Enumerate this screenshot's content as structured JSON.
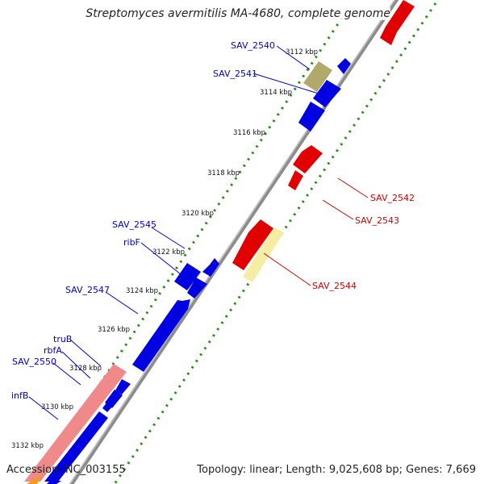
{
  "title": "Streptomyces avermitilis MA-4680, complete genome",
  "accession_text": "Accession: NC_003155",
  "summary_text": "Topology: linear; Length: 9,025,608 bp; Genes: 7,669",
  "ticks": [
    {
      "label": "3112 kbp"
    },
    {
      "label": "3114 kbp"
    },
    {
      "label": "3116 kbp"
    },
    {
      "label": "3118 kbp"
    },
    {
      "label": "3120 kbp"
    },
    {
      "label": "3122 kbp"
    },
    {
      "label": "3124 kbp"
    },
    {
      "label": "3126 kbp"
    },
    {
      "label": "3128 kbp"
    },
    {
      "label": "3130 kbp"
    },
    {
      "label": "3132 kbp"
    }
  ],
  "genes_reverse": [
    {
      "name": "SAV_2540",
      "color": "#b0a96b"
    },
    {
      "name": "SAV_2541",
      "color": "#0000e0"
    },
    {
      "name": "SAV_2545",
      "color": "#0000e0"
    },
    {
      "name": "ribF",
      "color": "#0000e0"
    },
    {
      "name": "SAV_2547",
      "color": "#0000e0"
    },
    {
      "name": "truB",
      "color": "#f08a8a"
    },
    {
      "name": "rbfA",
      "color": "#666666"
    },
    {
      "name": "SAV_2550",
      "color": "#0000e0"
    },
    {
      "name": "infB",
      "color": "#0000e0"
    }
  ],
  "genes_forward": [
    {
      "name": "SAV_2542",
      "color": "#e00000"
    },
    {
      "name": "SAV_2543",
      "color": "#e00000"
    },
    {
      "name": "SAV_2544",
      "color": "#e00000"
    }
  ],
  "colors": {
    "label_reverse": "#0000c8",
    "label_forward": "#d00000",
    "tick_dots": "#2a8a1a",
    "backbone": "#8c8c8c"
  }
}
